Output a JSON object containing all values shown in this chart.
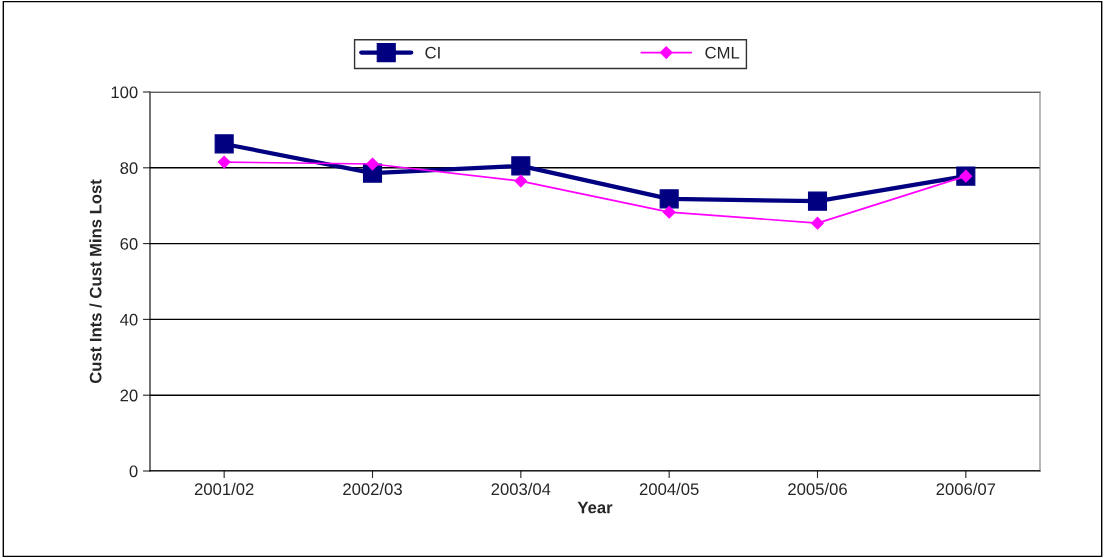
{
  "chart_data": {
    "type": "line",
    "xlabel": "Year",
    "ylabel": "Cust Ints / Cust Mins Lost",
    "categories": [
      "2001/02",
      "2002/03",
      "2003/04",
      "2004/05",
      "2005/06",
      "2006/07"
    ],
    "series": [
      {
        "name": "CI",
        "color": "#000080",
        "marker": "square",
        "values": [
          86.3,
          78.6,
          80.5,
          71.8,
          71.2,
          77.8
        ]
      },
      {
        "name": "CML",
        "color": "#ff00ff",
        "marker": "diamond",
        "values": [
          81.5,
          81,
          76.5,
          68.3,
          65.4,
          77.8
        ]
      }
    ],
    "ylim": [
      0,
      100
    ],
    "yticks": [
      0,
      20,
      40,
      60,
      80,
      100
    ],
    "grid": "y",
    "legend": "top"
  }
}
